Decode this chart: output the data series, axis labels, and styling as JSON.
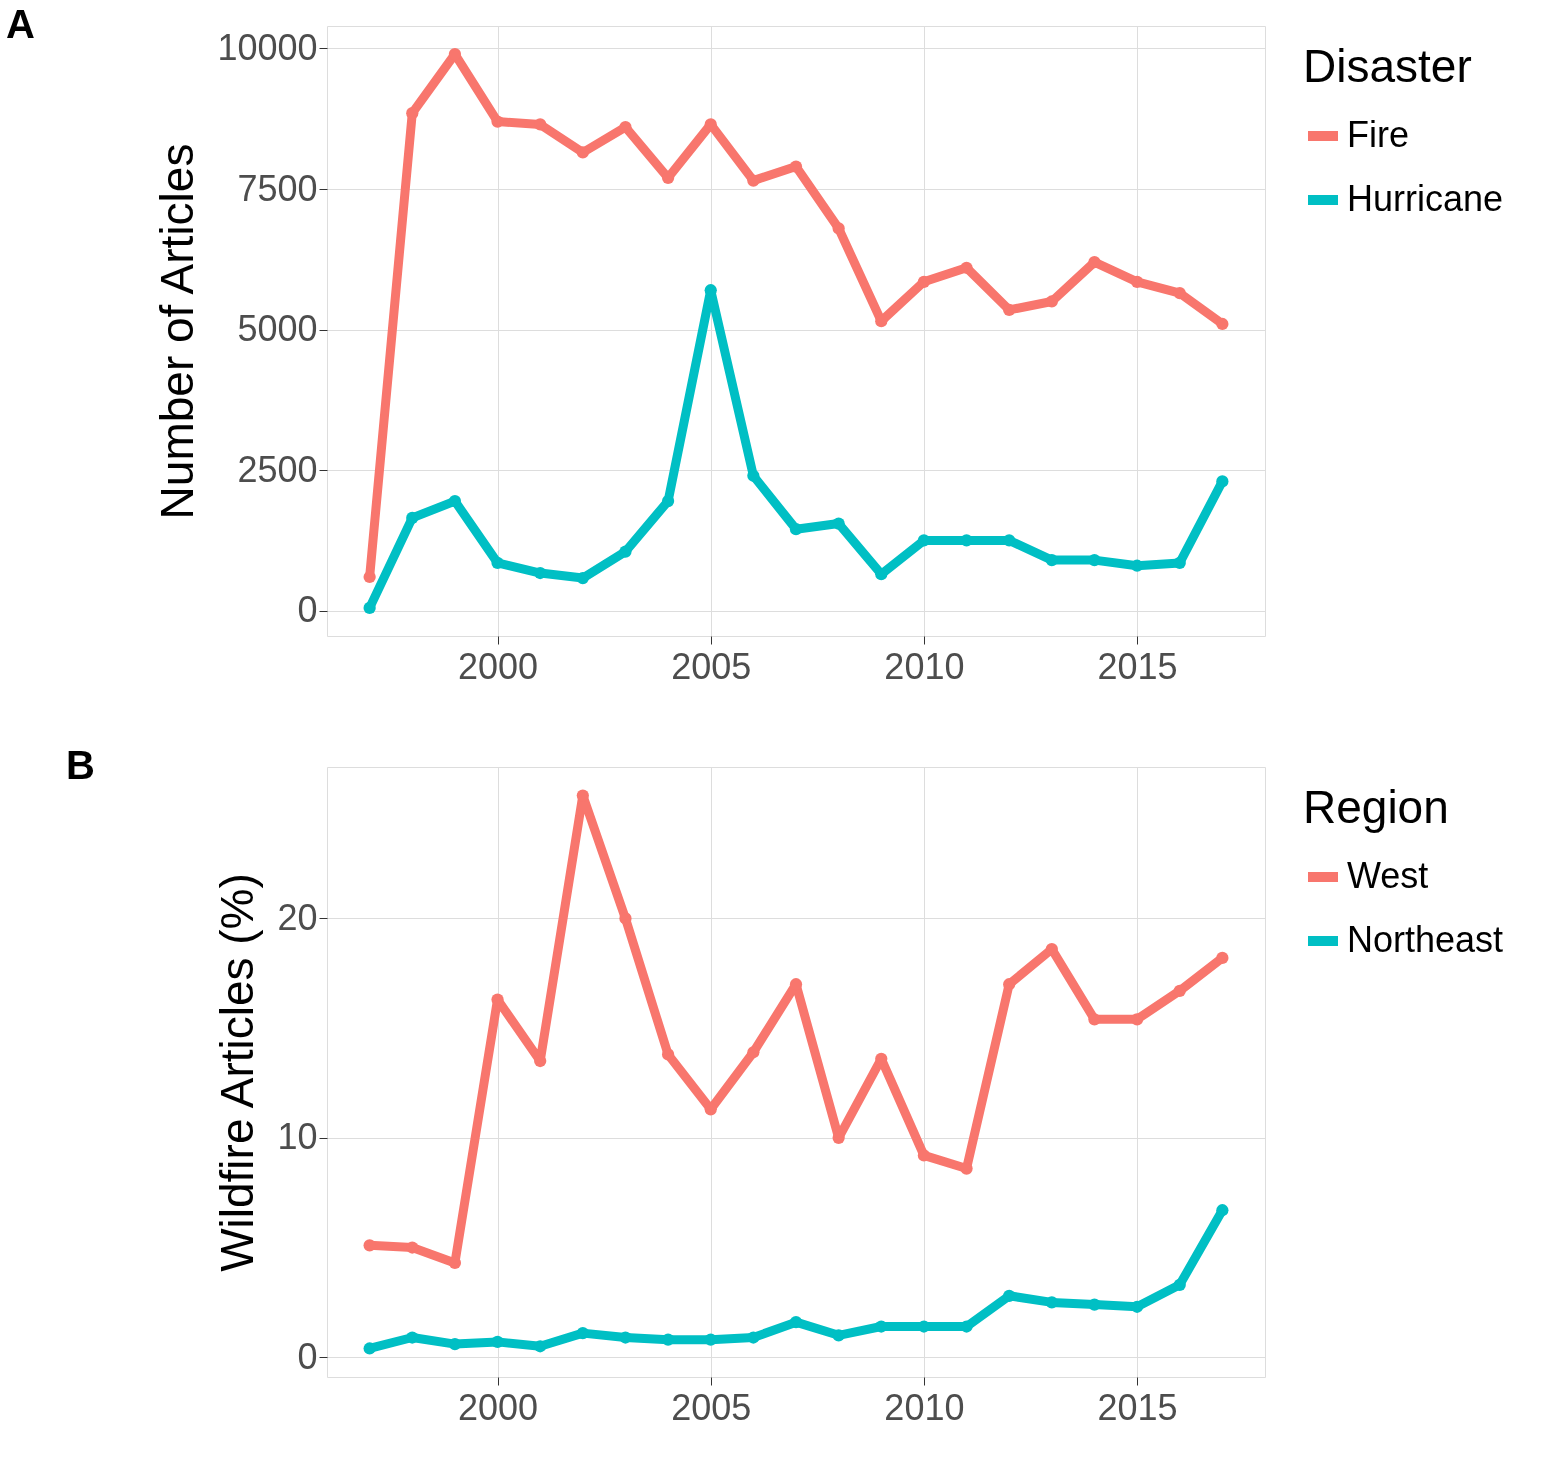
{
  "chart_data": [
    {
      "type": "line",
      "title": "A",
      "ylabel": "Number of Articles",
      "legend_title": "Disaster",
      "legend": "right",
      "grid": true,
      "marker": "circle",
      "line_style": "solid",
      "x": [
        1997,
        1998,
        1999,
        2000,
        2001,
        2002,
        2003,
        2004,
        2005,
        2006,
        2007,
        2008,
        2009,
        2010,
        2011,
        2012,
        2013,
        2014,
        2015,
        2016,
        2017
      ],
      "xlim": [
        1996,
        2018
      ],
      "xticks": [
        2000,
        2005,
        2010,
        2015
      ],
      "ylim": [
        -450,
        10400
      ],
      "yticks": [
        0,
        2500,
        5000,
        7500,
        10000
      ],
      "series": [
        {
          "name": "Fire",
          "color": "#f8766d",
          "values": [
            600,
            8850,
            9900,
            8700,
            8650,
            8150,
            8600,
            7700,
            8650,
            7650,
            7900,
            6800,
            5150,
            5850,
            6100,
            5350,
            5500,
            6200,
            5850,
            5650,
            5100
          ]
        },
        {
          "name": "Hurricane",
          "color": "#00bfc4",
          "values": [
            50,
            1650,
            1950,
            850,
            670,
            580,
            1050,
            1950,
            5700,
            2400,
            1450,
            1550,
            650,
            1250,
            1250,
            1250,
            900,
            900,
            800,
            850,
            2300
          ]
        }
      ]
    },
    {
      "type": "line",
      "title": "B",
      "ylabel": "Wildfire Articles (%)",
      "legend_title": "Region",
      "legend": "right",
      "grid": true,
      "marker": "circle",
      "line_style": "solid",
      "x": [
        1997,
        1998,
        1999,
        2000,
        2001,
        2002,
        2003,
        2004,
        2005,
        2006,
        2007,
        2008,
        2009,
        2010,
        2011,
        2012,
        2013,
        2014,
        2015,
        2016,
        2017
      ],
      "xlim": [
        1996,
        2018
      ],
      "xticks": [
        2000,
        2005,
        2010,
        2015
      ],
      "ylim": [
        -0.9,
        26.9
      ],
      "yticks": [
        0,
        10,
        20
      ],
      "series": [
        {
          "name": "West",
          "color": "#f8766d",
          "values": [
            5.1,
            5.0,
            4.3,
            16.3,
            13.5,
            25.6,
            20.0,
            13.8,
            11.3,
            13.9,
            17.0,
            10.0,
            13.6,
            9.2,
            8.6,
            17.0,
            18.6,
            15.4,
            15.4,
            16.7,
            18.2
          ]
        },
        {
          "name": "Northeast",
          "color": "#00bfc4",
          "values": [
            0.4,
            0.9,
            0.6,
            0.7,
            0.5,
            1.1,
            0.9,
            0.8,
            0.8,
            0.9,
            1.6,
            1.0,
            1.4,
            1.4,
            1.4,
            2.8,
            2.5,
            2.4,
            2.3,
            3.3,
            6.7
          ]
        }
      ]
    }
  ]
}
